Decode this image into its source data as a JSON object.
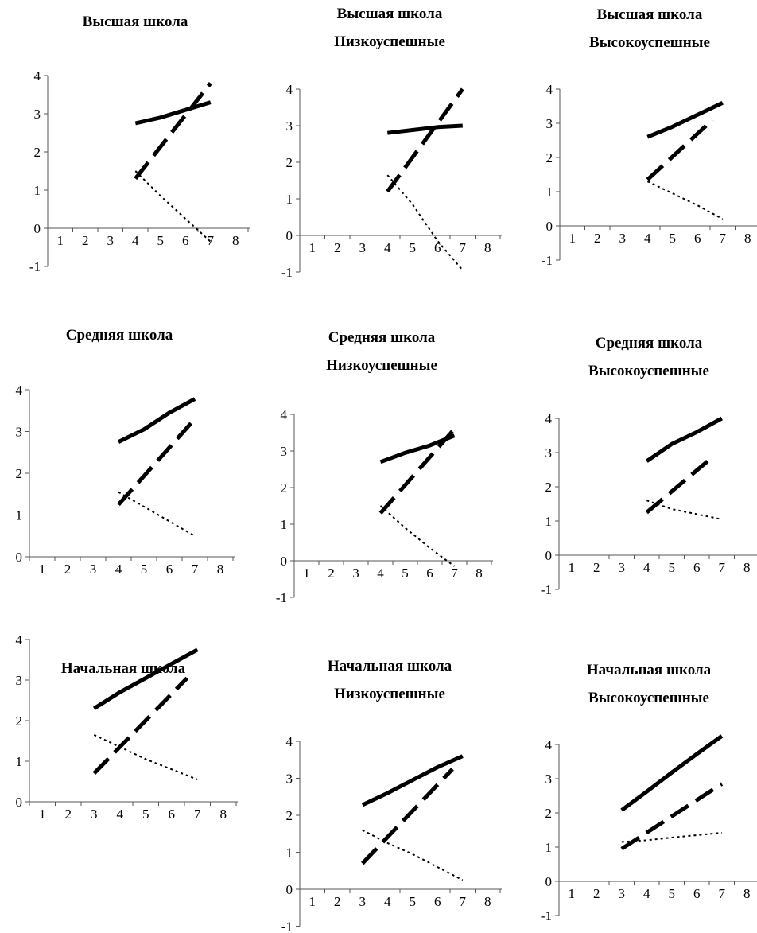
{
  "line_styles": {
    "solid": {
      "stroke_width": 5,
      "dash": ""
    },
    "dashed": {
      "stroke_width": 5,
      "dash": "26 11"
    },
    "dotted": {
      "stroke_width": 2,
      "dash": "3 4"
    }
  },
  "chart_data": [
    {
      "type": "line",
      "title": [
        "Высшая школа"
      ],
      "x_ticks": [
        "1",
        "2",
        "3",
        "4",
        "5",
        "6",
        "7",
        "8"
      ],
      "y_ticks": [
        "-1",
        "0",
        "1",
        "2",
        "3",
        "4"
      ],
      "xlim": [
        0.5,
        8.5
      ],
      "ylim": [
        -1,
        4
      ],
      "series": [
        {
          "style": "solid",
          "x": [
            4,
            5,
            6,
            7
          ],
          "y": [
            2.75,
            2.9,
            3.1,
            3.3
          ]
        },
        {
          "style": "dashed",
          "x": [
            4,
            7
          ],
          "y": [
            1.3,
            3.8
          ]
        },
        {
          "style": "dotted",
          "x": [
            4,
            5,
            6,
            7
          ],
          "y": [
            1.5,
            0.85,
            0.25,
            -0.35
          ]
        }
      ]
    },
    {
      "type": "line",
      "title": [
        "Высшая школа",
        "Низкоуспешные"
      ],
      "x_ticks": [
        "1",
        "2",
        "3",
        "4",
        "5",
        "6",
        "7",
        "8"
      ],
      "y_ticks": [
        "-1",
        "0",
        "1",
        "2",
        "3",
        "4"
      ],
      "xlim": [
        0.5,
        8.5
      ],
      "ylim": [
        -1,
        4
      ],
      "series": [
        {
          "style": "solid",
          "x": [
            4,
            5,
            6,
            7
          ],
          "y": [
            2.8,
            2.88,
            2.96,
            3.0
          ]
        },
        {
          "style": "dashed",
          "x": [
            4,
            7
          ],
          "y": [
            1.2,
            4.0
          ]
        },
        {
          "style": "dotted",
          "x": [
            4,
            5,
            6,
            7
          ],
          "y": [
            1.65,
            0.85,
            -0.15,
            -0.95
          ]
        }
      ]
    },
    {
      "type": "line",
      "title": [
        "Высшая школа",
        "Высокоуспешные"
      ],
      "x_ticks": [
        "1",
        "2",
        "3",
        "4",
        "5",
        "6",
        "7",
        "8"
      ],
      "y_ticks": [
        "-1",
        "0",
        "1",
        "2",
        "3",
        "4"
      ],
      "xlim": [
        0.5,
        8.5
      ],
      "ylim": [
        -1,
        4
      ],
      "series": [
        {
          "style": "solid",
          "x": [
            4,
            5,
            6,
            7
          ],
          "y": [
            2.6,
            2.9,
            3.25,
            3.6
          ]
        },
        {
          "style": "dashed",
          "x": [
            4,
            6.6
          ],
          "y": [
            1.35,
            3.1
          ]
        },
        {
          "style": "dotted",
          "x": [
            4,
            5,
            6,
            7
          ],
          "y": [
            1.3,
            0.95,
            0.6,
            0.2
          ]
        }
      ]
    },
    {
      "type": "line",
      "title": [
        "Средняя школа"
      ],
      "x_ticks": [
        "1",
        "2",
        "3",
        "4",
        "5",
        "6",
        "7",
        "8"
      ],
      "y_ticks": [
        "0",
        "1",
        "2",
        "3",
        "4"
      ],
      "xlim": [
        0.5,
        8.5
      ],
      "ylim": [
        0,
        4
      ],
      "series": [
        {
          "style": "solid",
          "x": [
            4,
            5,
            6,
            7
          ],
          "y": [
            2.75,
            3.05,
            3.45,
            3.78
          ]
        },
        {
          "style": "dashed",
          "x": [
            4,
            7
          ],
          "y": [
            1.25,
            3.3
          ]
        },
        {
          "style": "dotted",
          "x": [
            4,
            5,
            6,
            7
          ],
          "y": [
            1.55,
            1.2,
            0.85,
            0.5
          ]
        }
      ]
    },
    {
      "type": "line",
      "title": [
        "Средняя школа",
        "Низкоуспешные"
      ],
      "x_ticks": [
        "1",
        "2",
        "3",
        "4",
        "5",
        "6",
        "7",
        "8"
      ],
      "y_ticks": [
        "-1",
        "0",
        "1",
        "2",
        "3",
        "4"
      ],
      "xlim": [
        0.5,
        8.5
      ],
      "ylim": [
        -1,
        4
      ],
      "series": [
        {
          "style": "solid",
          "x": [
            4,
            5,
            6,
            7
          ],
          "y": [
            2.7,
            2.95,
            3.15,
            3.42
          ]
        },
        {
          "style": "dashed",
          "x": [
            4,
            7
          ],
          "y": [
            1.3,
            3.6
          ]
        },
        {
          "style": "dotted",
          "x": [
            4,
            5,
            6,
            7
          ],
          "y": [
            1.5,
            0.9,
            0.35,
            -0.15
          ]
        }
      ]
    },
    {
      "type": "line",
      "title": [
        "Средняя школа",
        "Высокоуспешные"
      ],
      "x_ticks": [
        "1",
        "2",
        "3",
        "4",
        "5",
        "6",
        "7",
        "8"
      ],
      "y_ticks": [
        "-1",
        "0",
        "1",
        "2",
        "3",
        "4"
      ],
      "xlim": [
        0.5,
        8.5
      ],
      "ylim": [
        -1,
        4
      ],
      "series": [
        {
          "style": "solid",
          "x": [
            4,
            5,
            6,
            7
          ],
          "y": [
            2.75,
            3.25,
            3.6,
            4.0
          ]
        },
        {
          "style": "dashed",
          "x": [
            4,
            6.6
          ],
          "y": [
            1.25,
            2.85
          ]
        },
        {
          "style": "dotted",
          "x": [
            4,
            5,
            6,
            7
          ],
          "y": [
            1.6,
            1.35,
            1.2,
            1.05
          ]
        }
      ]
    },
    {
      "type": "line",
      "title": [
        "Начальная школа"
      ],
      "x_ticks": [
        "1",
        "2",
        "3",
        "4",
        "5",
        "6",
        "7",
        "8"
      ],
      "y_ticks": [
        "0",
        "1",
        "2",
        "3",
        "4"
      ],
      "xlim": [
        0.5,
        8.5
      ],
      "ylim": [
        0,
        4
      ],
      "series": [
        {
          "style": "solid",
          "x": [
            3,
            4,
            5,
            6,
            7
          ],
          "y": [
            2.3,
            2.7,
            3.05,
            3.4,
            3.75
          ]
        },
        {
          "style": "dashed",
          "x": [
            3,
            6.6
          ],
          "y": [
            0.7,
            3.05
          ]
        },
        {
          "style": "dotted",
          "x": [
            3,
            4,
            5,
            6,
            7
          ],
          "y": [
            1.65,
            1.35,
            1.05,
            0.8,
            0.55
          ]
        }
      ]
    },
    {
      "type": "line",
      "title": [
        "Начальная  школа",
        "Низкоуспешные"
      ],
      "x_ticks": [
        "1",
        "2",
        "3",
        "4",
        "5",
        "6",
        "7",
        "8"
      ],
      "y_ticks": [
        "-1",
        "0",
        "1",
        "2",
        "3",
        "4"
      ],
      "xlim": [
        0.5,
        8.5
      ],
      "ylim": [
        -1,
        4
      ],
      "series": [
        {
          "style": "solid",
          "x": [
            3,
            4,
            5,
            6,
            7
          ],
          "y": [
            2.28,
            2.6,
            2.95,
            3.3,
            3.6
          ]
        },
        {
          "style": "dashed",
          "x": [
            3,
            6.6
          ],
          "y": [
            0.7,
            3.25
          ]
        },
        {
          "style": "dotted",
          "x": [
            3,
            4,
            5,
            6,
            7
          ],
          "y": [
            1.6,
            1.25,
            0.95,
            0.6,
            0.25
          ]
        }
      ]
    },
    {
      "type": "line",
      "title": [
        "Начальная школа",
        "Высокоуспешные"
      ],
      "x_ticks": [
        "1",
        "2",
        "3",
        "4",
        "5",
        "6",
        "7",
        "8"
      ],
      "y_ticks": [
        "-1",
        "0",
        "1",
        "2",
        "3",
        "4"
      ],
      "xlim": [
        0.5,
        8.5
      ],
      "ylim": [
        -1,
        4
      ],
      "series": [
        {
          "style": "solid",
          "x": [
            3,
            4,
            5,
            6,
            7
          ],
          "y": [
            2.08,
            2.62,
            3.18,
            3.72,
            4.25
          ]
        },
        {
          "style": "dashed",
          "x": [
            3,
            7
          ],
          "y": [
            0.95,
            2.85
          ]
        },
        {
          "style": "dotted",
          "x": [
            3,
            4,
            5,
            6,
            7
          ],
          "y": [
            1.15,
            1.2,
            1.28,
            1.35,
            1.42
          ]
        }
      ]
    }
  ]
}
